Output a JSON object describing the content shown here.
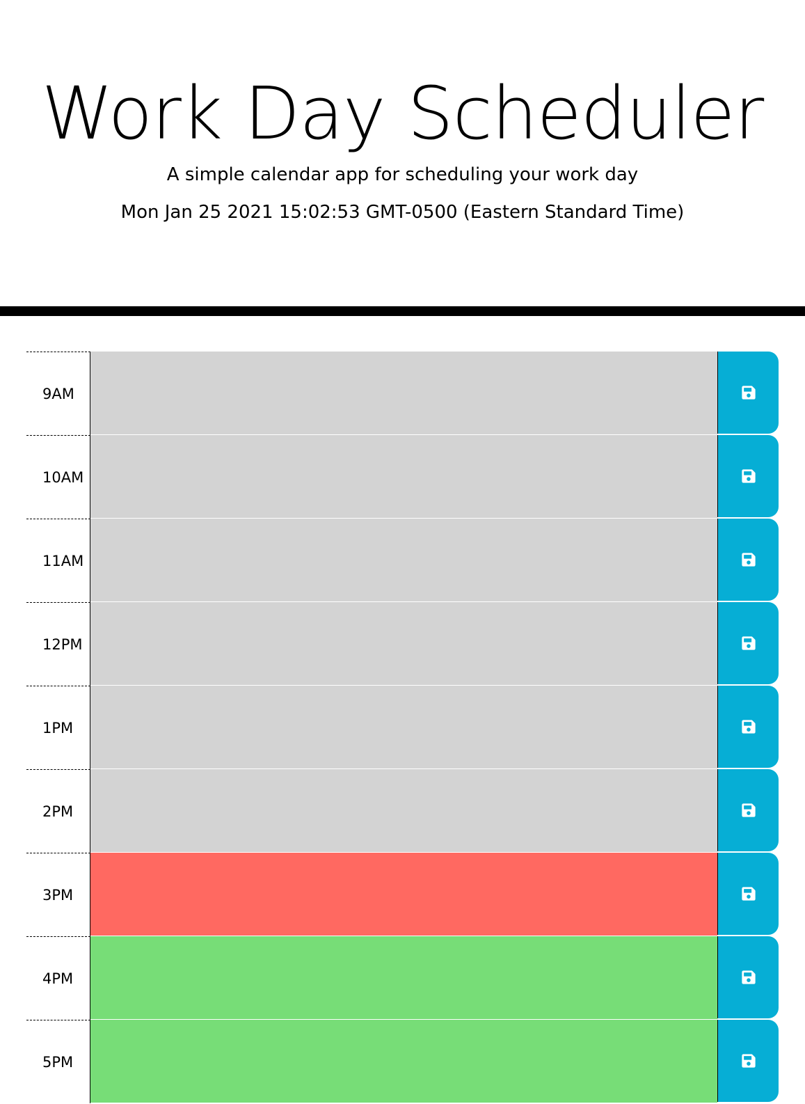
{
  "header": {
    "title": "Work Day Scheduler",
    "subtitle": "A simple calendar app for scheduling your work day",
    "current_day": "Mon Jan 25 2021 15:02:53 GMT-0500 (Eastern Standard Time)"
  },
  "colors": {
    "past": "#d3d3d3",
    "present": "#ff6961",
    "future": "#77dd77",
    "save_button": "#06aed5",
    "save_icon": "#ffffff"
  },
  "save_icon_name": "floppy-disk-icon",
  "time_blocks": [
    {
      "hour": "9AM",
      "status": "past",
      "description": ""
    },
    {
      "hour": "10AM",
      "status": "past",
      "description": ""
    },
    {
      "hour": "11AM",
      "status": "past",
      "description": ""
    },
    {
      "hour": "12PM",
      "status": "past",
      "description": ""
    },
    {
      "hour": "1PM",
      "status": "past",
      "description": ""
    },
    {
      "hour": "2PM",
      "status": "past",
      "description": ""
    },
    {
      "hour": "3PM",
      "status": "present",
      "description": ""
    },
    {
      "hour": "4PM",
      "status": "future",
      "description": ""
    },
    {
      "hour": "5PM",
      "status": "future",
      "description": ""
    }
  ]
}
